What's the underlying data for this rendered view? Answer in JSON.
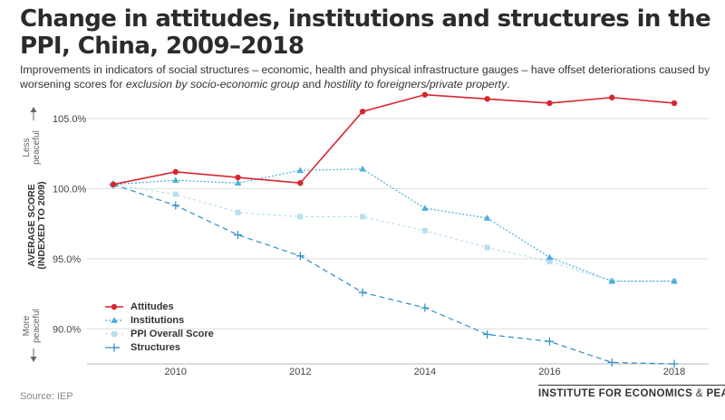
{
  "title": "Change in attitudes, institutions and structures in the PPI, China, 2009–2018",
  "subtitle": {
    "part1": "Improvements in indicators of social structures – economic, health and physical infrastructure gauges – have offset deteriorations caused by worsening scores for ",
    "em1": "exclusion by socio-economic group",
    "part2": " and ",
    "em2": "hostility to foreigners/private property",
    "part3": "."
  },
  "axis": {
    "less_peaceful": [
      "Less",
      "peaceful"
    ],
    "more_peaceful": [
      "More",
      "peaceful"
    ],
    "ylabel_line1": "AVERAGE SCORE",
    "ylabel_line2": "(INDEXED TO 2009)"
  },
  "source": "Source: IEP",
  "brand": {
    "main": "INSTITUTE FOR ECONOMICS",
    "amp": " & ",
    "end": "PEACE"
  },
  "colors": {
    "attitudes": "#d7262f",
    "institutions": "#4aaed9",
    "overall": "#b9def0",
    "structures": "#2f8fc5",
    "grid": "#dedede"
  },
  "chart_data": {
    "type": "line",
    "x": [
      2009,
      2010,
      2011,
      2012,
      2013,
      2014,
      2015,
      2016,
      2017,
      2018
    ],
    "ylim": [
      87.5,
      107.0
    ],
    "y_ticks": [
      90,
      95,
      100,
      105
    ],
    "y_tick_labels": [
      "90.0%",
      "95.0%",
      "100.0%",
      "105.0%"
    ],
    "x_ticks": [
      2010,
      2012,
      2014,
      2016,
      2018
    ],
    "x_tick_labels": [
      "2010",
      "2012",
      "2014",
      "2016",
      "2018"
    ],
    "grid": true,
    "legend_position": "bottom-left",
    "series": [
      {
        "name": "Attitudes",
        "key": "attitudes",
        "marker": "circle",
        "dash": "",
        "values": [
          100.3,
          101.2,
          100.8,
          100.4,
          105.5,
          106.7,
          106.4,
          106.1,
          106.5,
          106.1
        ]
      },
      {
        "name": "Institutions",
        "key": "institutions",
        "marker": "triangle",
        "dash": "2,2",
        "values": [
          100.3,
          100.6,
          100.4,
          101.3,
          101.4,
          98.6,
          97.9,
          95.1,
          93.4,
          93.4
        ]
      },
      {
        "name": "PPI Overall Score",
        "key": "overall",
        "marker": "square",
        "dash": "3,3",
        "values": [
          100.3,
          99.6,
          98.3,
          98.0,
          98.0,
          97.0,
          95.8,
          94.8,
          93.4,
          93.4
        ]
      },
      {
        "name": "Structures",
        "key": "structures",
        "marker": "plus",
        "dash": "6,4",
        "values": [
          100.3,
          98.8,
          96.7,
          95.2,
          92.6,
          91.5,
          89.6,
          89.1,
          87.6,
          87.5
        ]
      }
    ]
  }
}
